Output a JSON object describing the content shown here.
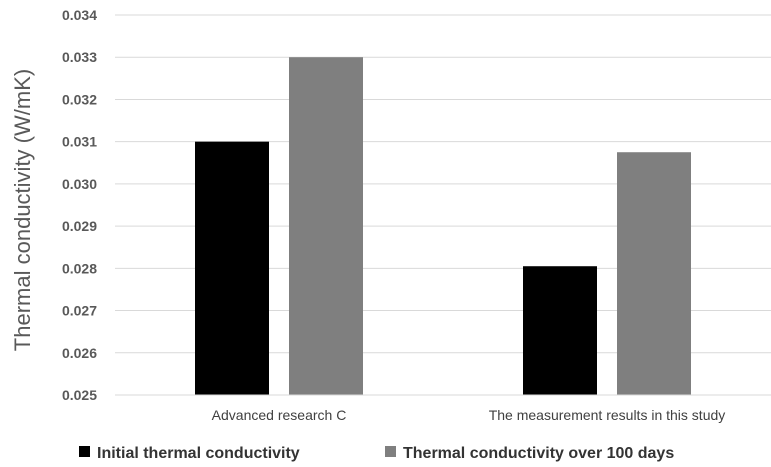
{
  "chart_data": {
    "type": "bar",
    "title": "",
    "xlabel": "",
    "ylabel": "Thermal conductivity (W/mK)",
    "ylim": [
      0.025,
      0.034
    ],
    "yticks": [
      "0.025",
      "0.026",
      "0.027",
      "0.028",
      "0.029",
      "0.030",
      "0.031",
      "0.032",
      "0.033",
      "0.034"
    ],
    "categories": [
      "Advanced research C",
      "The measurement results in this study"
    ],
    "series": [
      {
        "name": "Initial thermal conductivity",
        "values": [
          0.031,
          0.02805
        ],
        "color": "#000000"
      },
      {
        "name": "Thermal conductivity over 100 days",
        "values": [
          0.033,
          0.03075
        ],
        "color": "#7f7f7f"
      }
    ],
    "grid": true,
    "legend_position": "bottom"
  }
}
